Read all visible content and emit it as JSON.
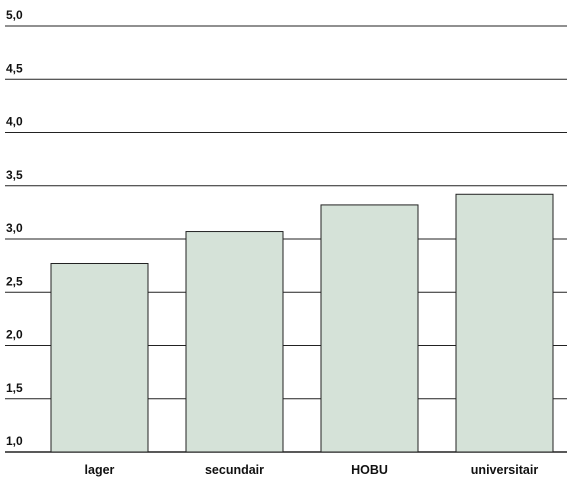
{
  "chart_data": {
    "type": "bar",
    "categories": [
      "lager",
      "secundair",
      "HOBU",
      "universitair"
    ],
    "values": [
      2.77,
      3.07,
      3.32,
      3.42
    ],
    "ylim": [
      1.0,
      5.0
    ],
    "yticks": [
      "1,0",
      "1,5",
      "2,0",
      "2,5",
      "3,0",
      "3,5",
      "4,0",
      "4,5",
      "5,0"
    ],
    "title": "",
    "xlabel": "",
    "ylabel": "",
    "grid": true,
    "bar_color": "#d5e2d8",
    "bar_edge_color": "#222222",
    "grid_color": "#222222"
  }
}
